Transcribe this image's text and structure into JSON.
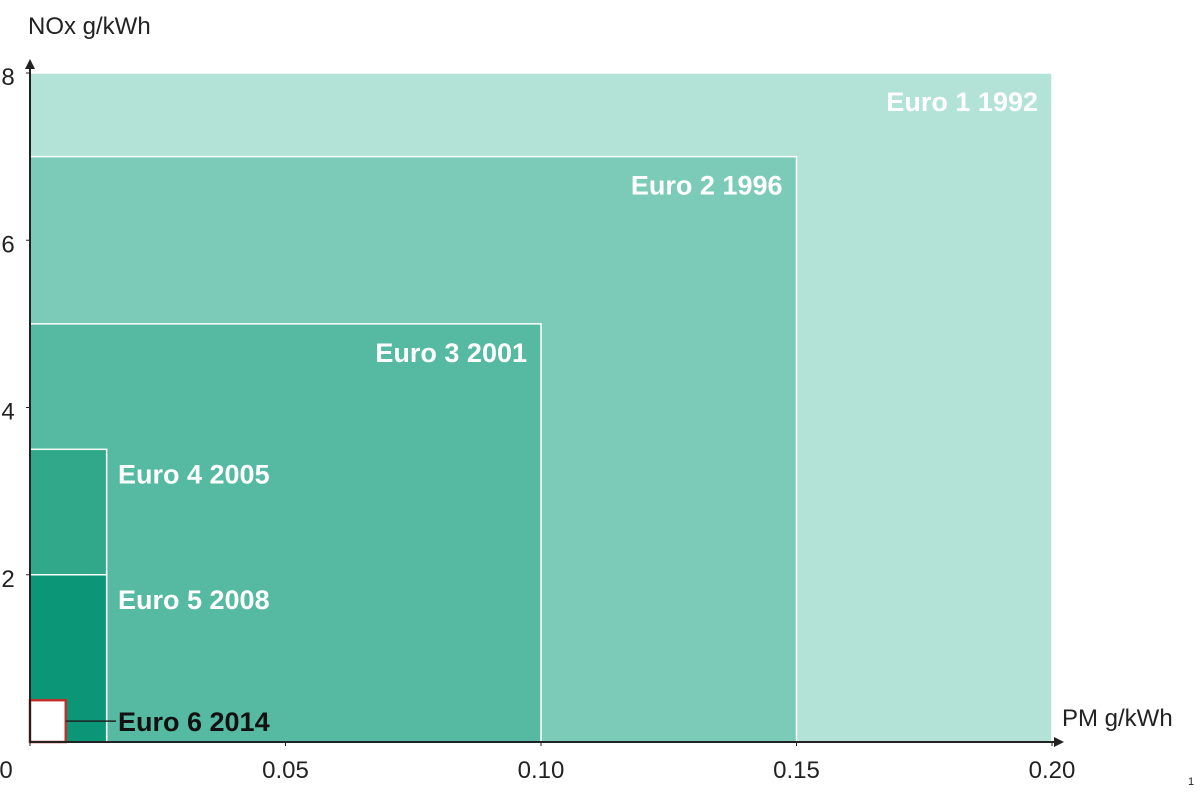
{
  "chart_data": {
    "type": "rectangle",
    "y_axis_label": "NOx g/kWh",
    "x_axis_label": "PM g/kWh",
    "page_number": "1",
    "xlim": [
      0,
      0.2
    ],
    "ylim": [
      0,
      8
    ],
    "xticks": [
      {
        "value": 0,
        "label": "0"
      },
      0.05,
      {
        "value": 0.1,
        "label": "0.10"
      },
      0.15,
      {
        "value": 0.2,
        "label": "0.20"
      }
    ],
    "yticks": [
      2,
      4,
      6,
      8
    ],
    "series": [
      {
        "name": "Euro 1  1992",
        "x": 0.2,
        "y": 8,
        "color": "#b3e2d6"
      },
      {
        "name": "Euro 2  1996",
        "x": 0.15,
        "y": 7,
        "color": "#7ccbb8"
      },
      {
        "name": "Euro 3  2001",
        "x": 0.1,
        "y": 5,
        "color": "#56b9a2"
      },
      {
        "name": "Euro 4  2005",
        "x": 0.015,
        "y": 3.5,
        "color": "#31a88a"
      },
      {
        "name": "Euro 5  2008",
        "x": 0.015,
        "y": 2,
        "color": "#0b9677"
      },
      {
        "name": "Euro 6  2014",
        "x": 0.007,
        "y": 0.5,
        "color": "#ffffff",
        "border": "#c0302a"
      }
    ]
  }
}
